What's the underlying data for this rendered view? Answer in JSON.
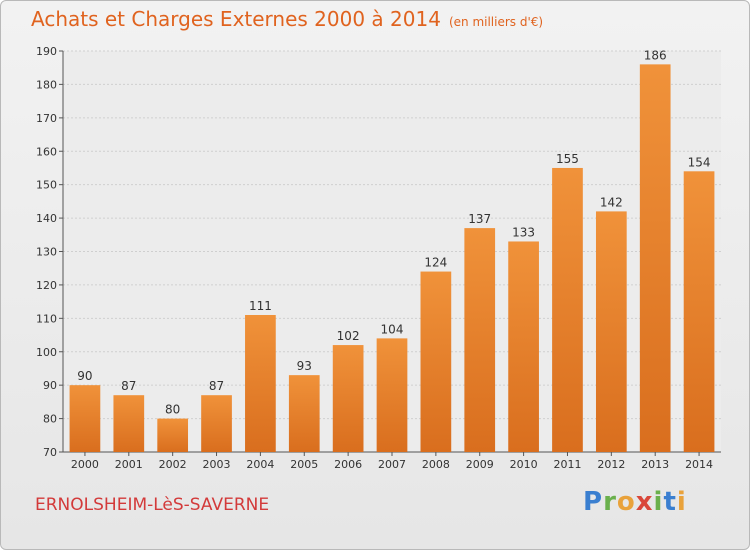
{
  "chart_data": {
    "type": "bar",
    "title": "Achats et Charges Externes 2000 à 2014",
    "subtitle": "(en milliers d'€)",
    "categories": [
      "2000",
      "2001",
      "2002",
      "2003",
      "2004",
      "2005",
      "2006",
      "2007",
      "2008",
      "2009",
      "2010",
      "2011",
      "2012",
      "2013",
      "2014"
    ],
    "values": [
      90,
      87,
      80,
      87,
      111,
      93,
      102,
      104,
      124,
      137,
      133,
      155,
      142,
      186,
      154
    ],
    "ylim": [
      70,
      190
    ],
    "yticks": [
      70,
      80,
      90,
      100,
      110,
      120,
      130,
      140,
      150,
      160,
      170,
      180,
      190
    ],
    "grid": true,
    "bar_color": "#f0923a",
    "bar_color_dark": "#d96e1e"
  },
  "footer": {
    "town": "ERNOLSHEIM-LèS-SAVERNE",
    "brand": {
      "p": "P",
      "r": "r",
      "o": "o",
      "x": "x",
      "i1": "i",
      "t": "t",
      "i2": "i"
    }
  }
}
